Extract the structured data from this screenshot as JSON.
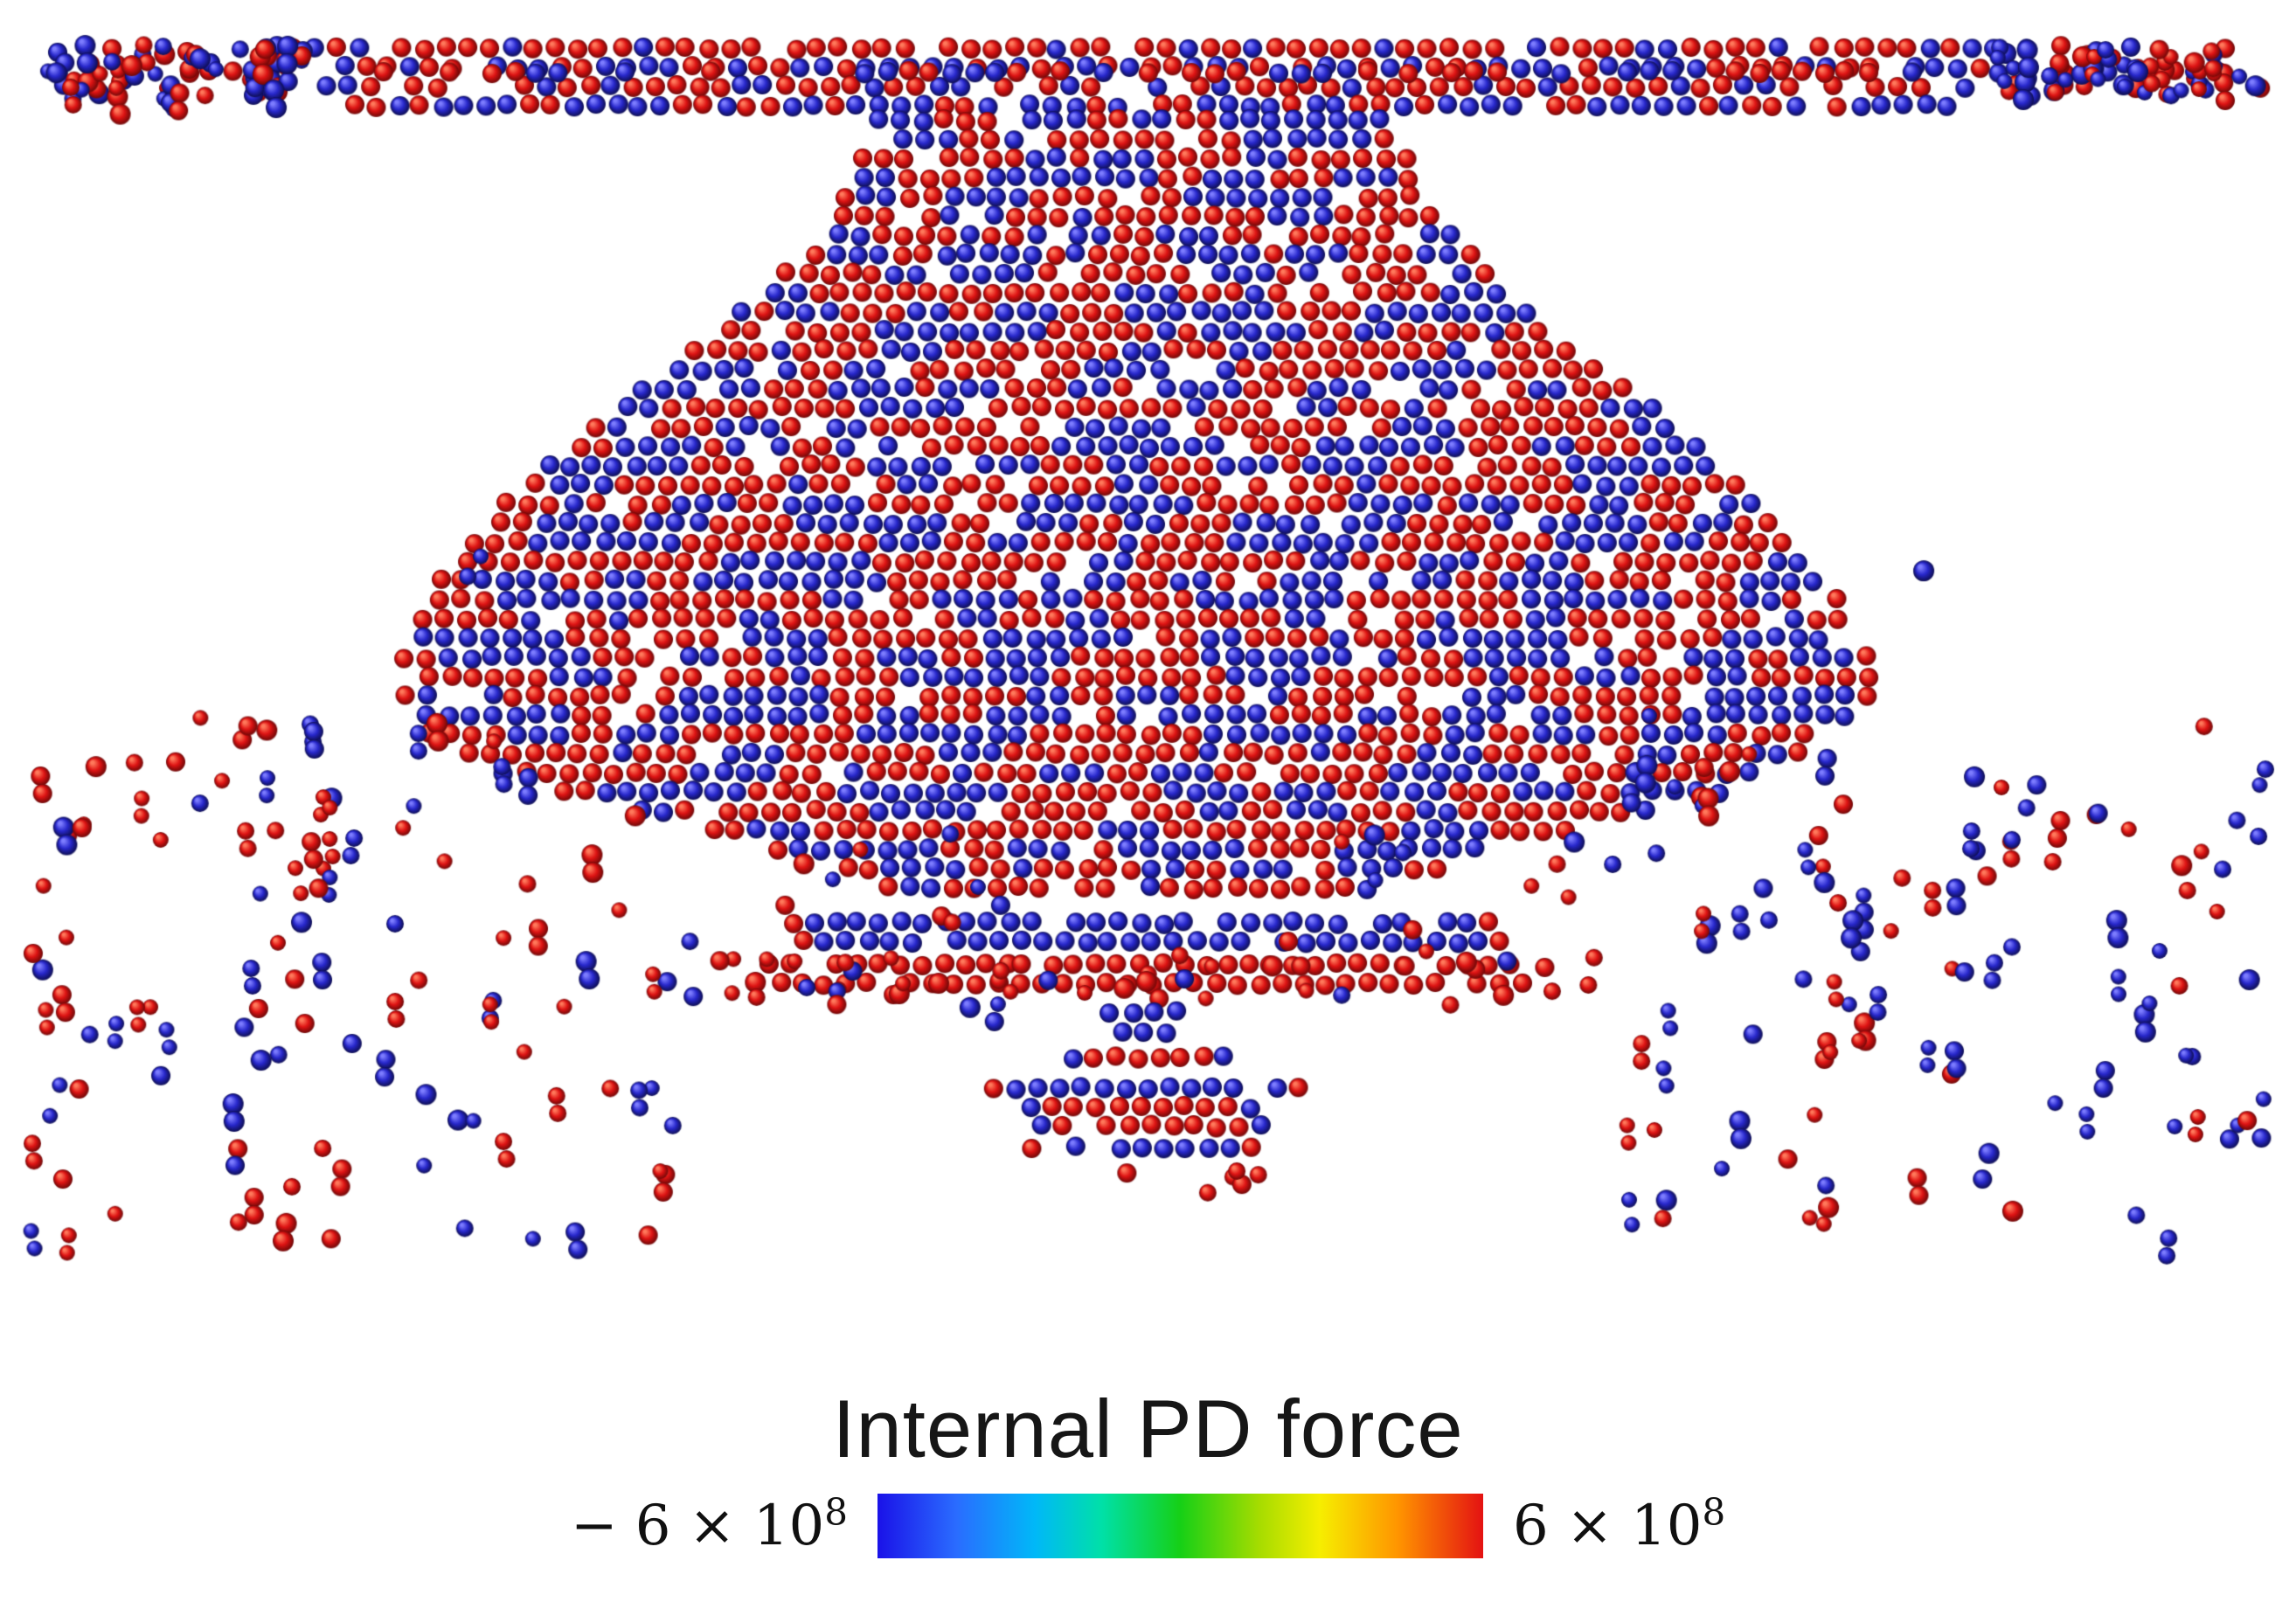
{
  "figure": {
    "background": "#ffffff"
  },
  "chart_data": {
    "type": "scatter",
    "title": "Internal PD force",
    "description": "Peridynamics particle simulation snapshot: a dense axisymmetric cloud of red (positive force) and blue (negative force) spherical particles forming a thin top plate, a widening conical body with a broad central bulge, a tapering neck, thin detached particle rings, a small dripping cluster at the bottom center, and sparse scattered debris particles on the lower left and right.",
    "colorbar": {
      "label": "Internal PD force",
      "min": -600000000,
      "max": 600000000,
      "min_label_base": "− 6 × 10",
      "min_label_exp": "8",
      "max_label_base": "6 × 10",
      "max_label_exp": "8",
      "gradient_stops": [
        {
          "color": "#1a12e8",
          "pos": 0
        },
        {
          "color": "#2a6cff",
          "pos": 13
        },
        {
          "color": "#00b8f8",
          "pos": 26
        },
        {
          "color": "#00e0a8",
          "pos": 37
        },
        {
          "color": "#16d016",
          "pos": 50
        },
        {
          "color": "#a6dc00",
          "pos": 63
        },
        {
          "color": "#f6ee00",
          "pos": 73
        },
        {
          "color": "#ff9400",
          "pos": 86
        },
        {
          "color": "#e41212",
          "pos": 100
        }
      ]
    },
    "point_colors": {
      "positive": {
        "name": "red",
        "base": "#df1414",
        "light": "#ff7a5c",
        "dark": "#6e0808"
      },
      "negative": {
        "name": "blue",
        "base": "#2828cc",
        "light": "#7d7dff",
        "dark": "#0e0e52"
      }
    },
    "particle_style": {
      "radius": 11,
      "spacing": 0.0095
    },
    "particle_layers": [
      {
        "name": "top-plate",
        "kind": "grid",
        "y0": 0.03,
        "y1": 0.066,
        "xc": 0.5,
        "hw0": 0.372,
        "hw1": 0.35,
        "fill": 0.93,
        "noise_scale": 1.7
      },
      {
        "name": "plate-rim",
        "kind": "rows",
        "y": 0.045,
        "rows": 1,
        "xc": 0.5,
        "hw": 0.475,
        "color": "mix",
        "ends": null,
        "fill": 0.55
      },
      {
        "name": "top-plate-left-wing",
        "kind": "scatter",
        "x0": 0.015,
        "x1": 0.132,
        "y0": 0.028,
        "y1": 0.062,
        "count": 65,
        "red": 0.5,
        "pair": 0.3
      },
      {
        "name": "top-plate-right-wing",
        "kind": "scatter",
        "x0": 0.868,
        "x1": 0.986,
        "y0": 0.028,
        "y1": 0.062,
        "count": 65,
        "red": 0.5,
        "pair": 0.3
      },
      {
        "name": "main-body",
        "kind": "profile",
        "xc": 0.495,
        "fill": 0.94,
        "profile": [
          [
            0.075,
            0.112
          ],
          [
            0.125,
            0.128
          ],
          [
            0.165,
            0.148
          ],
          [
            0.205,
            0.18
          ],
          [
            0.25,
            0.222
          ],
          [
            0.305,
            0.268
          ],
          [
            0.365,
            0.305
          ],
          [
            0.425,
            0.323
          ],
          [
            0.465,
            0.305
          ],
          [
            0.5,
            0.245
          ],
          [
            0.525,
            0.168
          ],
          [
            0.545,
            0.125
          ],
          [
            0.558,
            0.102
          ]
        ]
      },
      {
        "name": "ring-blue",
        "kind": "rows",
        "y": 0.582,
        "rows": 2,
        "xc": 0.5,
        "hw": 0.155,
        "color": "blue",
        "ends": "red"
      },
      {
        "name": "ring-red",
        "kind": "rows",
        "y": 0.608,
        "rows": 2,
        "xc": 0.5,
        "hw": 0.165,
        "color": "red",
        "ends": null
      },
      {
        "name": "ring-red-halo",
        "kind": "scatter",
        "x0": 0.3,
        "x1": 0.7,
        "y0": 0.596,
        "y1": 0.624,
        "count": 36,
        "red": 0.85
      },
      {
        "name": "drip-blue-cap",
        "kind": "blob",
        "xc": 0.5,
        "yc": 0.633,
        "rx": 0.021,
        "ry": 0.013,
        "color": "blue",
        "ends": null
      },
      {
        "name": "drip-red-cluster",
        "kind": "blob",
        "xc": 0.5,
        "yc": 0.659,
        "rx": 0.038,
        "ry": 0.011,
        "color": "red",
        "ends": "blue"
      },
      {
        "name": "drip-blue-row",
        "kind": "rows",
        "y": 0.679,
        "rows": 1,
        "xc": 0.5,
        "hw": 0.067,
        "color": "blue",
        "ends": "red"
      },
      {
        "name": "drip-red-block",
        "kind": "rows",
        "y": 0.697,
        "rows": 2,
        "xc": 0.5,
        "hw": 0.051,
        "color": "red",
        "ends": "blue"
      },
      {
        "name": "drip-blue-row2",
        "kind": "rows",
        "y": 0.716,
        "rows": 1,
        "xc": 0.5,
        "hw": 0.05,
        "color": "blue",
        "ends": "red"
      },
      {
        "name": "drip-red-tip",
        "kind": "scatter",
        "x0": 0.455,
        "x1": 0.555,
        "y0": 0.73,
        "y1": 0.748,
        "count": 6,
        "red": 0.9
      },
      {
        "name": "debris-left",
        "kind": "scatter",
        "x0": 0.012,
        "x1": 0.295,
        "y0": 0.445,
        "y1": 0.775,
        "count": 115,
        "red": 0.55,
        "pair": 0.35
      },
      {
        "name": "debris-right",
        "kind": "scatter",
        "x0": 0.705,
        "x1": 0.988,
        "y0": 0.445,
        "y1": 0.775,
        "count": 115,
        "red": 0.55,
        "pair": 0.35
      },
      {
        "name": "debris-mid-left",
        "kind": "scatter",
        "x0": 0.295,
        "x1": 0.445,
        "y0": 0.52,
        "y1": 0.64,
        "count": 18,
        "red": 0.6
      },
      {
        "name": "debris-mid-right",
        "kind": "scatter",
        "x0": 0.555,
        "x1": 0.705,
        "y0": 0.52,
        "y1": 0.64,
        "count": 18,
        "red": 0.6
      },
      {
        "name": "stray-left-high",
        "kind": "scatter",
        "x0": 0.165,
        "x1": 0.215,
        "y0": 0.33,
        "y1": 0.36,
        "count": 2,
        "red": 0.0
      },
      {
        "name": "stray-right-high",
        "kind": "scatter",
        "x0": 0.79,
        "x1": 0.84,
        "y0": 0.33,
        "y1": 0.36,
        "count": 2,
        "red": 0.0
      }
    ]
  }
}
